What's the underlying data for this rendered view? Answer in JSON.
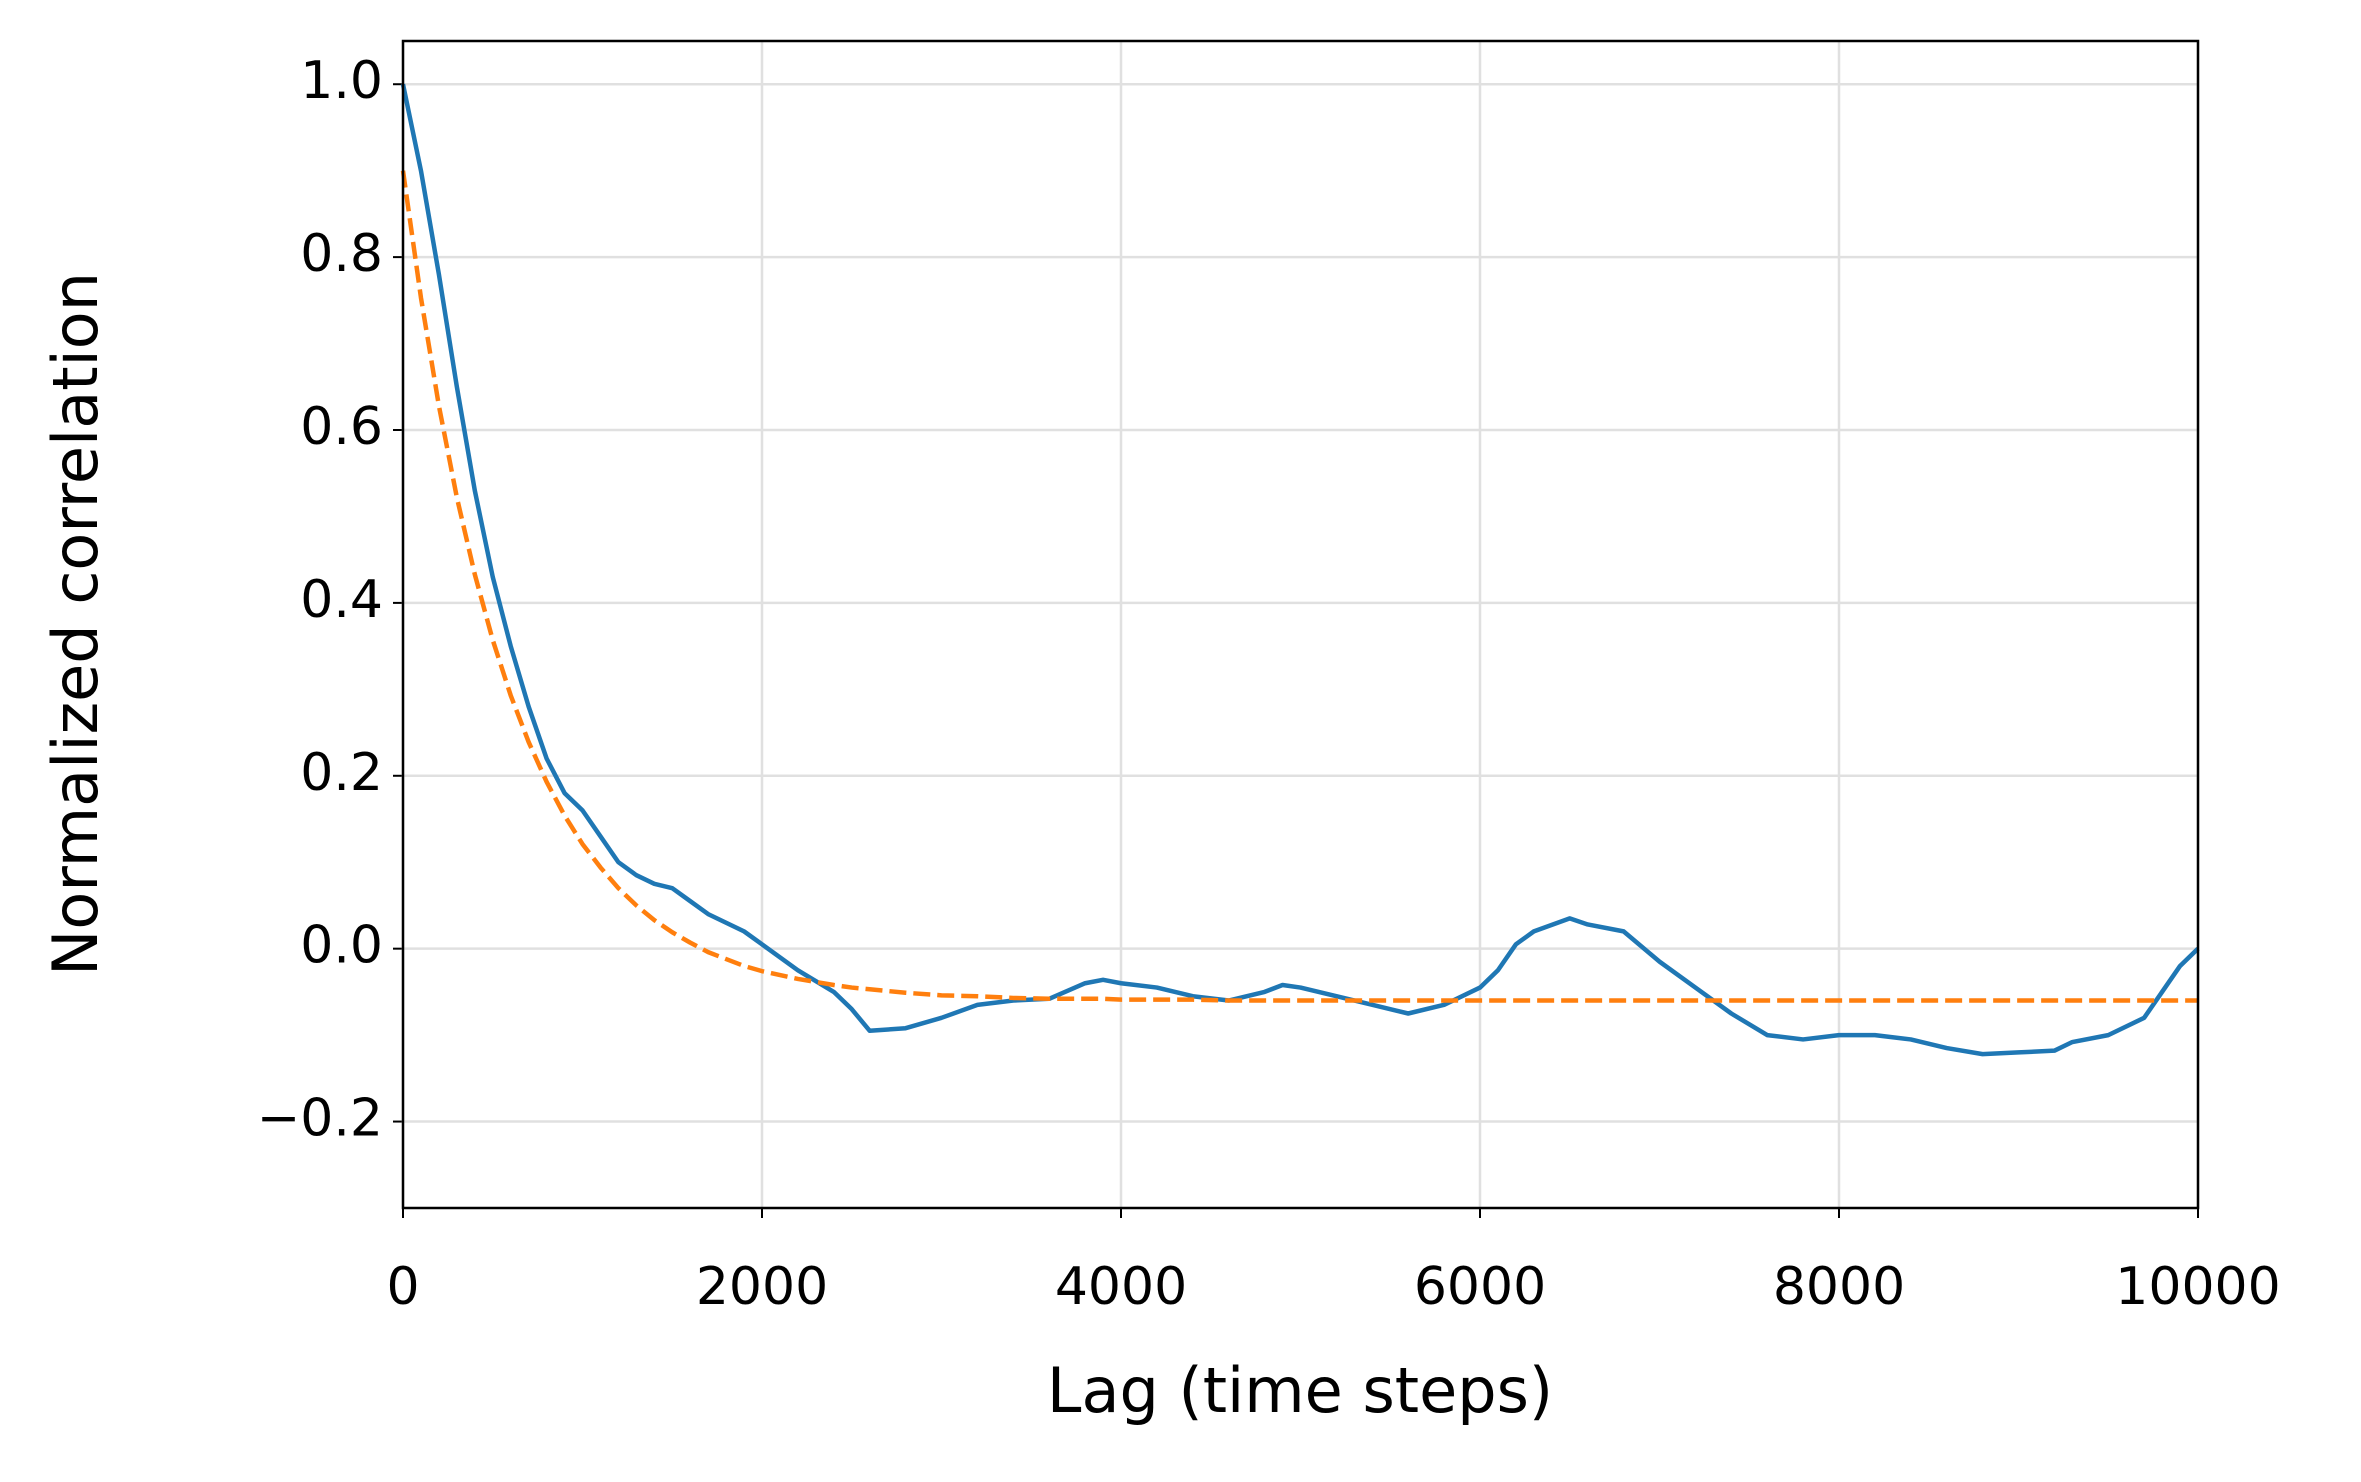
{
  "chart_data": {
    "type": "line",
    "xlabel": "Lag (time steps)",
    "ylabel": "Normalized correlation",
    "x": [
      0,
      100,
      200,
      300,
      400,
      500,
      600,
      700,
      800,
      900,
      1000,
      1100,
      1200,
      1300,
      1400,
      1500,
      1600,
      1700,
      1800,
      1900,
      2000,
      2200,
      2400,
      2500,
      2600,
      2800,
      3000,
      3200,
      3400,
      3600,
      3800,
      3900,
      4000,
      4200,
      4400,
      4600,
      4800,
      4900,
      5000,
      5200,
      5400,
      5600,
      5800,
      6000,
      6100,
      6200,
      6300,
      6500,
      6600,
      6800,
      7000,
      7200,
      7400,
      7600,
      7800,
      8000,
      8200,
      8400,
      8600,
      8800,
      9000,
      9200,
      9300,
      9500,
      9700,
      9900,
      10000
    ],
    "series": [
      {
        "color": "#1f77b4",
        "dashed": false,
        "values": [
          1.0,
          0.9,
          0.78,
          0.65,
          0.53,
          0.43,
          0.35,
          0.28,
          0.22,
          0.18,
          0.16,
          0.13,
          0.1,
          0.085,
          0.075,
          0.07,
          0.055,
          0.04,
          0.03,
          0.02,
          0.005,
          -0.025,
          -0.05,
          -0.07,
          -0.095,
          -0.092,
          -0.08,
          -0.065,
          -0.06,
          -0.058,
          -0.04,
          -0.036,
          -0.04,
          -0.045,
          -0.055,
          -0.06,
          -0.05,
          -0.042,
          -0.045,
          -0.055,
          -0.065,
          -0.075,
          -0.065,
          -0.045,
          -0.025,
          0.005,
          0.02,
          0.035,
          0.028,
          0.02,
          -0.015,
          -0.045,
          -0.075,
          -0.1,
          -0.105,
          -0.1,
          -0.1,
          -0.105,
          -0.115,
          -0.122,
          -0.12,
          -0.118,
          -0.108,
          -0.1,
          -0.08,
          -0.02,
          0.0
        ]
      },
      {
        "color": "#ff7f0e",
        "dashed": true,
        "values": [
          0.9,
          0.753,
          0.628,
          0.522,
          0.433,
          0.357,
          0.293,
          0.239,
          0.193,
          0.154,
          0.121,
          0.094,
          0.07,
          0.05,
          0.033,
          0.019,
          0.007,
          -0.004,
          -0.012,
          -0.02,
          -0.026,
          -0.035,
          -0.042,
          -0.045,
          -0.047,
          -0.051,
          -0.054,
          -0.055,
          -0.057,
          -0.058,
          -0.058,
          -0.058,
          -0.059,
          -0.059,
          -0.059,
          -0.06,
          -0.06,
          -0.06,
          -0.06,
          -0.06,
          -0.06,
          -0.06,
          -0.06,
          -0.06,
          -0.06,
          -0.06,
          -0.06,
          -0.06,
          -0.06,
          -0.06,
          -0.06,
          -0.06,
          -0.06,
          -0.06,
          -0.06,
          -0.06,
          -0.06,
          -0.06,
          -0.06,
          -0.06,
          -0.06,
          -0.06,
          -0.06,
          -0.06,
          -0.06,
          -0.06,
          -0.06
        ]
      }
    ],
    "xlim": [
      0,
      10000
    ],
    "xticks": [
      0,
      2000,
      4000,
      6000,
      8000,
      10000
    ],
    "ylim": [
      -0.3,
      1.05
    ],
    "yticks": [
      {
        "value": -0.2,
        "label": "−0.2"
      },
      {
        "value": 0,
        "label": "0.0"
      },
      0.2,
      0.4,
      0.6,
      0.8,
      {
        "value": 1,
        "label": "1.0"
      }
    ],
    "grid": true
  }
}
